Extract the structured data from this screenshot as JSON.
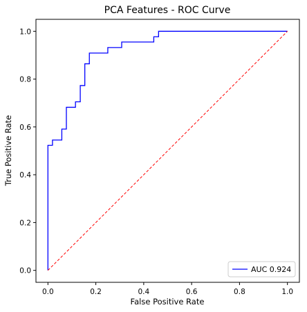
{
  "chart_data": {
    "type": "line",
    "title": "PCA Features - ROC Curve",
    "xlabel": "False Positive Rate",
    "ylabel": "True Positive Rate",
    "xlim": [
      -0.05,
      1.05
    ],
    "ylim": [
      -0.05,
      1.05
    ],
    "xticks": [
      0.0,
      0.2,
      0.4,
      0.6,
      0.8,
      1.0
    ],
    "yticks": [
      0.0,
      0.2,
      0.4,
      0.6,
      0.8,
      1.0
    ],
    "xtick_labels": [
      "0.0",
      "0.2",
      "0.4",
      "0.6",
      "0.8",
      "1.0"
    ],
    "ytick_labels": [
      "0.0",
      "0.2",
      "0.4",
      "0.6",
      "0.8",
      "1.0"
    ],
    "grid": false,
    "legend_position": "bottom-right",
    "series": [
      {
        "name": "AUC 0.924",
        "color": "#0000ff",
        "style": "solid",
        "x": [
          0.0,
          0.0,
          0.019,
          0.019,
          0.058,
          0.058,
          0.077,
          0.077,
          0.115,
          0.115,
          0.135,
          0.135,
          0.154,
          0.154,
          0.173,
          0.173,
          0.25,
          0.25,
          0.308,
          0.308,
          0.442,
          0.442,
          0.462,
          0.462,
          1.0
        ],
        "y": [
          0.0,
          0.523,
          0.523,
          0.545,
          0.545,
          0.591,
          0.591,
          0.682,
          0.682,
          0.705,
          0.705,
          0.773,
          0.773,
          0.864,
          0.864,
          0.909,
          0.909,
          0.932,
          0.932,
          0.955,
          0.955,
          0.977,
          0.977,
          1.0,
          1.0
        ]
      },
      {
        "color": "#ff0000",
        "style": "dashed",
        "x": [
          0.0,
          1.0
        ],
        "y": [
          0.0,
          1.0
        ]
      }
    ]
  }
}
